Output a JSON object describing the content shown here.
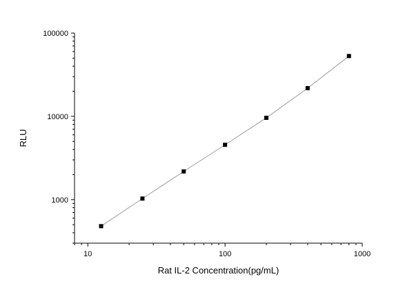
{
  "chart_data": {
    "type": "scatter",
    "title": "",
    "xlabel": "Rat IL-2 Concentration(pg/mL)",
    "ylabel": "RLU",
    "x_scale": "log",
    "y_scale": "log",
    "xlim": [
      8,
      1000
    ],
    "ylim": [
      300,
      100000
    ],
    "x_ticks": [
      10,
      100,
      1000
    ],
    "x_tick_labels": [
      "10",
      "100",
      "1000"
    ],
    "y_ticks": [
      1000,
      10000,
      100000
    ],
    "y_tick_labels": [
      "1000",
      "10000",
      "100000"
    ],
    "grid": false,
    "legend": "none",
    "series": [
      {
        "x": [
          12.5,
          25,
          50,
          100,
          200,
          400,
          800
        ],
        "y": [
          480,
          1030,
          2180,
          4550,
          9600,
          21800,
          53000
        ],
        "marker": "square",
        "marker_color": "#000000",
        "line_color": "#9a9a9a"
      }
    ]
  }
}
